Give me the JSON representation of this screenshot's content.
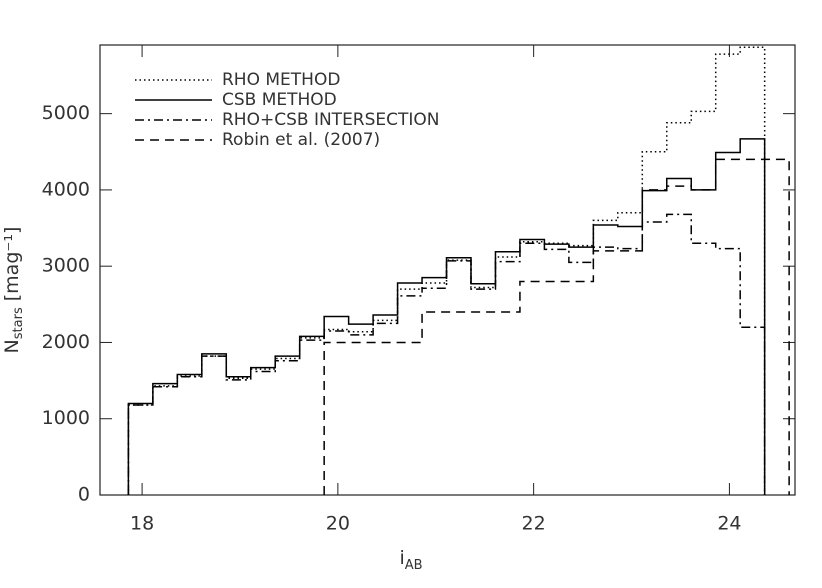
{
  "chart_data": {
    "type": "histogram",
    "xlabel": "i",
    "xlabel_sub": "AB",
    "ylabel": "N",
    "ylabel_sub": "stars",
    "ylabel_unit": "[mag⁻¹]",
    "bins": [
      17.86,
      18.11,
      18.36,
      18.61,
      18.86,
      19.11,
      19.36,
      19.61,
      19.86,
      20.11,
      20.36,
      20.61,
      20.86,
      21.11,
      21.36,
      21.61,
      21.86,
      22.11,
      22.36,
      22.61,
      22.86,
      23.11,
      23.36,
      23.61,
      23.86,
      24.11,
      24.36,
      24.61
    ],
    "series": [
      {
        "name": "RHO METHOD",
        "color": "#000000",
        "style": "dotted",
        "values": [
          1180,
          1430,
          1560,
          1820,
          1530,
          1650,
          1790,
          2060,
          2170,
          2140,
          2290,
          2700,
          2780,
          3080,
          2720,
          3120,
          3320,
          3300,
          3270,
          3600,
          3700,
          4500,
          4880,
          5030,
          5780,
          5870,
          null
        ]
      },
      {
        "name": "CSB METHOD",
        "color": "#000000",
        "style": "solid",
        "values": [
          1200,
          1460,
          1580,
          1850,
          1550,
          1670,
          1820,
          2080,
          2340,
          2240,
          2360,
          2780,
          2850,
          3110,
          2770,
          3190,
          3350,
          3290,
          3250,
          3540,
          3520,
          3990,
          4150,
          4000,
          4490,
          4670,
          null
        ]
      },
      {
        "name": "RHO+CSB INTERSECTION",
        "color": "#000000",
        "style": "dashdot",
        "values": [
          1180,
          1420,
          1550,
          1820,
          1510,
          1620,
          1760,
          2030,
          2150,
          2100,
          2250,
          2610,
          2710,
          3070,
          2700,
          3060,
          3300,
          3220,
          3050,
          3250,
          3230,
          3580,
          3680,
          3300,
          3230,
          2200,
          null
        ]
      },
      {
        "name": "Robin et al. (2007)",
        "color": "#000000",
        "style": "dashed",
        "values": [
          null,
          null,
          null,
          null,
          null,
          null,
          null,
          null,
          2000,
          2000,
          2000,
          2000,
          2400,
          2400,
          2400,
          2400,
          2800,
          2800,
          2800,
          3200,
          3200,
          4000,
          4050,
          4000,
          4400,
          4400,
          4400
        ]
      }
    ],
    "xlim": [
      17.57,
      24.67
    ],
    "ylim": [
      0,
      5900
    ],
    "xticks": [
      18,
      20,
      22,
      24
    ],
    "yticks": [
      0,
      1000,
      2000,
      3000,
      4000,
      5000
    ],
    "legend": "upper left"
  }
}
